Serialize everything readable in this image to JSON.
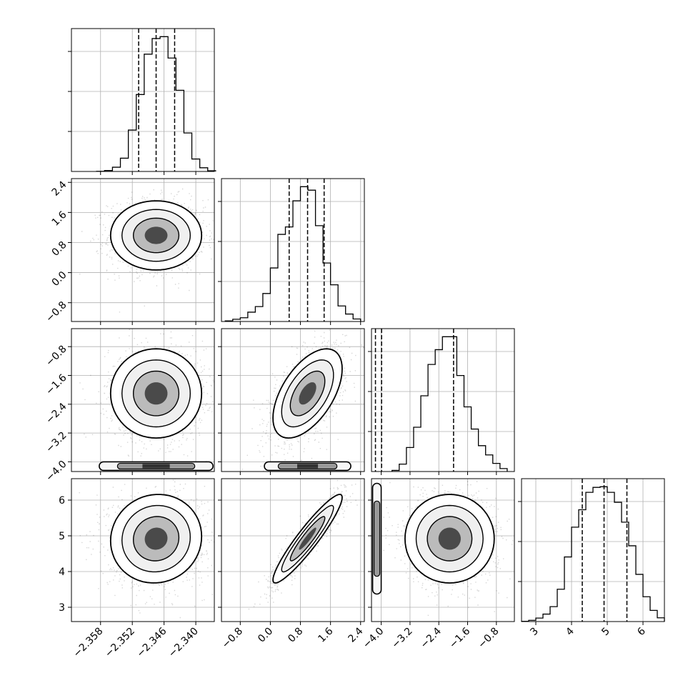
{
  "chart_data": {
    "type": "corner",
    "style": {
      "hist_color": "#000000",
      "contour_color": "#000000",
      "point_color": "#000000",
      "grid_color": "#b0b0b0"
    },
    "parameters": [
      {
        "index": 0,
        "range": [
          -2.3635,
          -2.3365
        ],
        "ticks": [
          -2.358,
          -2.352,
          -2.346,
          -2.34
        ],
        "tick_labels": [
          "−2.358",
          "−2.352",
          "−2.346",
          "−2.340"
        ],
        "quantiles": [
          -2.3508,
          -2.3475,
          -2.344
        ],
        "hist_x": [
          -2.358,
          -2.3565,
          -2.355,
          -2.3535,
          -2.352,
          -2.3505,
          -2.349,
          -2.3475,
          -2.346,
          -2.3445,
          -2.343,
          -2.3415,
          -2.34,
          -2.3385,
          -2.337
        ],
        "hist_y": [
          1,
          7,
          32,
          100,
          312,
          580,
          884,
          1002,
          1016,
          855,
          612,
          290,
          94,
          28,
          5
        ]
      },
      {
        "index": 1,
        "range": [
          -1.3,
          2.5
        ],
        "ticks": [
          -0.8,
          0.0,
          0.8,
          1.6,
          2.4
        ],
        "tick_labels": [
          "−0.8",
          "0.0",
          "0.8",
          "1.6",
          "2.4"
        ],
        "quantiles": [
          0.5,
          0.99,
          1.43
        ],
        "hist_x": [
          -1.1,
          -0.9,
          -0.7,
          -0.5,
          -0.3,
          -0.1,
          0.1,
          0.3,
          0.5,
          0.7,
          0.9,
          1.1,
          1.3,
          1.5,
          1.7,
          1.9,
          2.1,
          2.3
        ],
        "hist_y": [
          5,
          18,
          30,
          75,
          120,
          225,
          430,
          700,
          760,
          970,
          1083,
          1055,
          770,
          470,
          295,
          125,
          60,
          20
        ]
      },
      {
        "index": 2,
        "range": [
          -4.27,
          -0.3
        ],
        "ticks": [
          -4.0,
          -3.2,
          -2.4,
          -1.6,
          -0.8
        ],
        "tick_labels": [
          "−4.0",
          "−3.2",
          "−2.4",
          "−1.6",
          "−0.8"
        ],
        "quantiles": [
          -4.16,
          -3.99,
          -1.99
        ],
        "hist_x": [
          -3.6,
          -3.4,
          -3.2,
          -3.0,
          -2.8,
          -2.6,
          -2.4,
          -2.2,
          -2.0,
          -1.8,
          -1.6,
          -1.4,
          -1.2,
          -1.0,
          -0.8,
          -0.6
        ],
        "hist_y": [
          3,
          20,
          65,
          120,
          205,
          290,
          330,
          365,
          365,
          260,
          175,
          115,
          70,
          45,
          22,
          8
        ]
      },
      {
        "index": 3,
        "range": [
          2.6,
          6.6
        ],
        "ticks": [
          3,
          4,
          5,
          6
        ],
        "tick_labels": [
          "3",
          "4",
          "5",
          "6"
        ],
        "quantiles": [
          4.3,
          4.91,
          5.55
        ],
        "hist_x": [
          2.7,
          2.9,
          3.1,
          3.3,
          3.5,
          3.7,
          3.9,
          4.1,
          4.3,
          4.5,
          4.7,
          4.9,
          5.1,
          5.3,
          5.5,
          5.7,
          5.9,
          6.1,
          6.3,
          6.5
        ],
        "hist_y": [
          2,
          10,
          28,
          60,
          120,
          260,
          520,
          760,
          900,
          1040,
          1080,
          1085,
          1040,
          960,
          800,
          610,
          380,
          200,
          90,
          30
        ]
      }
    ],
    "pairs": [
      {
        "row": 1,
        "col": 0,
        "corr": 0.0,
        "center": [
          -2.3475,
          0.99
        ],
        "sigma": [
          0.0043,
          0.46
        ]
      },
      {
        "row": 2,
        "col": 0,
        "corr": 0.0,
        "center": [
          -2.3475,
          -2.1
        ],
        "sigma": [
          0.0043,
          0.62
        ],
        "low_band": -4.12
      },
      {
        "row": 2,
        "col": 1,
        "corr": 0.55,
        "center": [
          0.99,
          -2.1
        ],
        "sigma": [
          0.46,
          0.62
        ],
        "low_band": -4.12
      },
      {
        "row": 3,
        "col": 0,
        "corr": 0.05,
        "center": [
          -2.3475,
          4.92
        ],
        "sigma": [
          0.0043,
          0.62
        ]
      },
      {
        "row": 3,
        "col": 1,
        "corr": 0.93,
        "center": [
          0.99,
          4.92
        ],
        "sigma": [
          0.46,
          0.62
        ]
      },
      {
        "row": 3,
        "col": 2,
        "corr": 0.0,
        "center": [
          -2.1,
          4.92
        ],
        "sigma": [
          0.62,
          0.62
        ],
        "left_band": -4.12
      }
    ]
  }
}
